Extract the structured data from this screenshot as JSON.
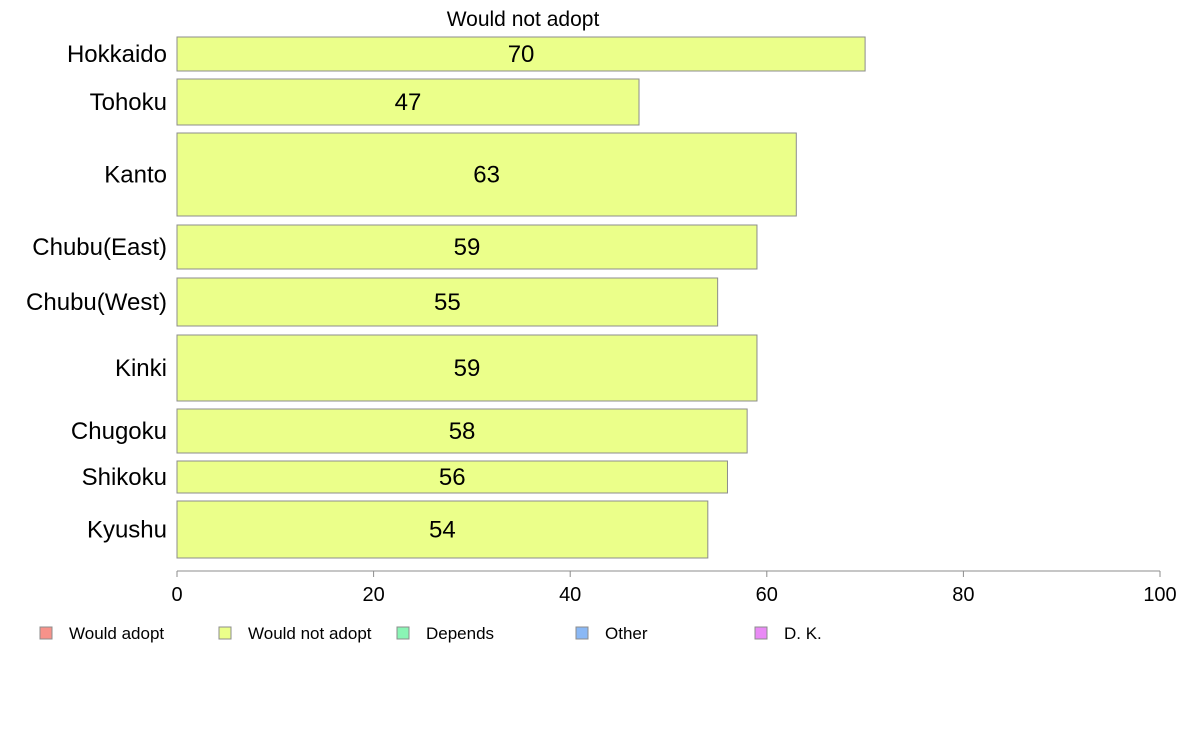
{
  "chart_data": {
    "type": "bar",
    "orientation": "horizontal",
    "title": "Would not adopt",
    "categories": [
      "Hokkaido",
      "Tohoku",
      "Kanto",
      "Chubu(East)",
      "Chubu(West)",
      "Kinki",
      "Chugoku",
      "Shikoku",
      "Kyushu"
    ],
    "series": [
      {
        "name": "Would not adopt",
        "values": [
          70,
          47,
          63,
          59,
          55,
          59,
          58,
          56,
          54
        ],
        "color": "#ebff8a"
      }
    ],
    "data_labels": [
      "70",
      "47",
      "63",
      "59",
      "55",
      "59",
      "58",
      "56",
      "54"
    ],
    "xlim": [
      0,
      100
    ],
    "xticks": [
      0,
      20,
      40,
      60,
      80,
      100
    ],
    "grid": false,
    "legend_position": "bottom",
    "legend": [
      {
        "label": "Would adopt",
        "color": "#f7928a"
      },
      {
        "label": "Would not adopt",
        "color": "#ebff8a"
      },
      {
        "label": "Depends",
        "color": "#8af5b5"
      },
      {
        "label": "Other",
        "color": "#8ab8f5"
      },
      {
        "label": "D. K.",
        "color": "#e98af5"
      }
    ]
  }
}
